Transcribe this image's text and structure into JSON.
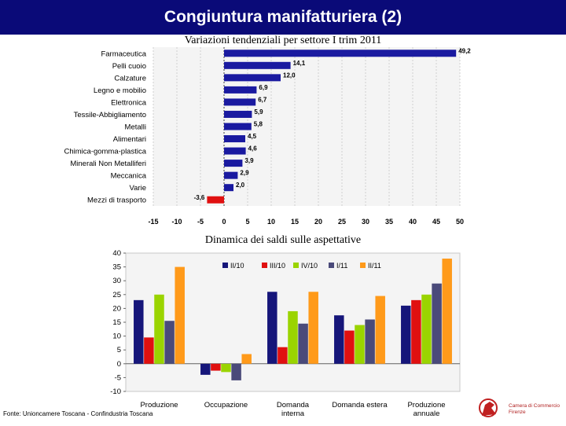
{
  "header": {
    "title": "Congiuntura manifatturiera (2)"
  },
  "chart_data": [
    {
      "type": "bar",
      "orientation": "horizontal",
      "title": "Variazioni tendenziali per settore I trim 2011",
      "categories": [
        "Farmaceutica",
        "Pelli cuoio",
        "Calzature",
        "Legno e mobilio",
        "Elettronica",
        "Tessile-Abbigliamento",
        "Metalli",
        "Alimentari",
        "Chimica-gomma-plastica",
        "Minerali Non Metalliferi",
        "Meccanica",
        "Varie",
        "Mezzi di trasporto"
      ],
      "values": [
        49.2,
        14.1,
        12.0,
        6.9,
        6.7,
        5.9,
        5.8,
        4.5,
        4.6,
        3.9,
        2.9,
        2.0,
        -3.6
      ],
      "value_labels": [
        "49,2",
        "14,1",
        "12,0",
        "6,9",
        "6,7",
        "5,9",
        "5,8",
        "4,5",
        "4,6",
        "3,9",
        "2,9",
        "2,0",
        "-3,6"
      ],
      "xlim": [
        -15,
        50
      ],
      "xticks": [
        -15,
        -10,
        -5,
        0,
        5,
        10,
        15,
        20,
        25,
        30,
        35,
        40,
        45,
        50
      ],
      "bar_color": "#1a1aa0",
      "negative_color": "#e01010"
    },
    {
      "type": "bar",
      "title": "Dinamica dei saldi sulle aspettative",
      "categories": [
        "Produzione",
        "Occupazione",
        "Domanda interna",
        "Domanda estera",
        "Produzione annuale"
      ],
      "category_lines": [
        [
          "Produzione"
        ],
        [
          "Occupazione"
        ],
        [
          "Domanda",
          "interna"
        ],
        [
          "Domanda estera"
        ],
        [
          "Produzione",
          "annuale"
        ]
      ],
      "series": [
        {
          "name": "II/10",
          "color": "#16167a",
          "values": [
            23,
            -4,
            26,
            17.5,
            21
          ]
        },
        {
          "name": "III/10",
          "color": "#e01010",
          "values": [
            9.5,
            -2.5,
            6,
            12,
            23
          ]
        },
        {
          "name": "IV/10",
          "color": "#9ad400",
          "values": [
            25,
            -3,
            19,
            14,
            25
          ]
        },
        {
          "name": "I/11",
          "color": "#4a4a7a",
          "values": [
            15.5,
            -6,
            14.5,
            16,
            29
          ]
        },
        {
          "name": "II/11",
          "color": "#ff9a1a",
          "values": [
            35,
            3.5,
            26,
            24.5,
            38
          ]
        }
      ],
      "ylim": [
        -10,
        40
      ],
      "yticks": [
        -10,
        -5,
        0,
        5,
        10,
        15,
        20,
        25,
        30,
        35,
        40
      ]
    }
  ],
  "footer": {
    "source": "Fonte: Unioncamere Toscana - Confindustria Toscana",
    "logo_text_1": "Camera di Commercio",
    "logo_text_2": "Firenze",
    "logo_icon": "knight-logo-icon"
  }
}
